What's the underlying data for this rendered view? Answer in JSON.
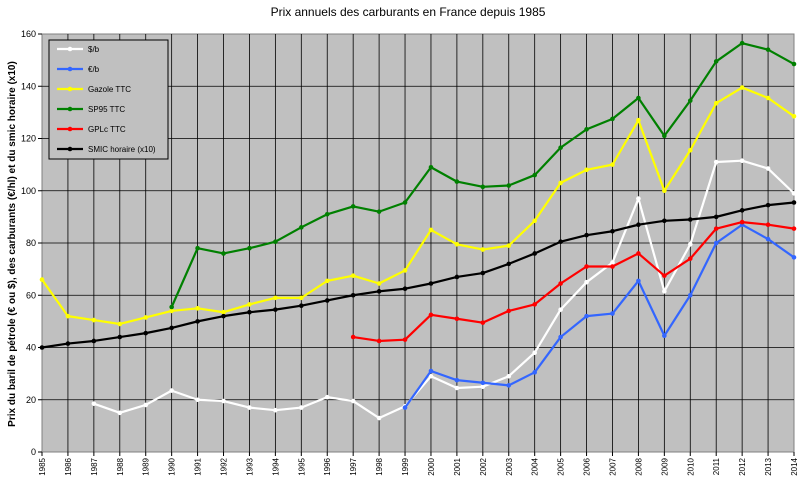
{
  "chart_data": {
    "type": "line",
    "title": "Prix annuels des carburants en France depuis 1985",
    "xlabel": "",
    "ylabel": "Prix du baril de pétrole (€ ou $), des carburants (€/hl) et du smic horaire (x10)",
    "ylim": [
      0,
      160
    ],
    "yticks": [
      0,
      20,
      40,
      60,
      80,
      100,
      120,
      140,
      160
    ],
    "x": [
      1985,
      1986,
      1987,
      1988,
      1989,
      1990,
      1991,
      1992,
      1993,
      1994,
      1995,
      1996,
      1997,
      1998,
      1999,
      2000,
      2001,
      2002,
      2003,
      2004,
      2005,
      2006,
      2007,
      2008,
      2009,
      2010,
      2011,
      2012,
      2013,
      2014
    ],
    "grid": true,
    "legend_position": "top-left",
    "series": [
      {
        "name": "$/b",
        "color": "#ffffff",
        "values": [
          null,
          null,
          18.5,
          15,
          18,
          23.5,
          20,
          19.5,
          17,
          16,
          17,
          21,
          19.5,
          13,
          17.5,
          29,
          24.5,
          25,
          29,
          38,
          54.5,
          65,
          72.5,
          97,
          61.5,
          79.5,
          111,
          111.5,
          108.5,
          99
        ]
      },
      {
        "name": "€/b",
        "color": "#3366ff",
        "values": [
          null,
          null,
          null,
          null,
          null,
          null,
          null,
          null,
          null,
          null,
          null,
          null,
          null,
          null,
          17,
          31,
          27.5,
          26.5,
          25.5,
          30.5,
          44,
          52,
          53,
          65.5,
          44.5,
          60,
          80,
          87,
          81.5,
          74.5
        ]
      },
      {
        "name": "Gazole TTC",
        "color": "#ffff00",
        "values": [
          66,
          52,
          50.5,
          49,
          51.5,
          54,
          55,
          53.5,
          56.5,
          59,
          59,
          65.5,
          67.5,
          64.5,
          69.5,
          85,
          79.5,
          77.5,
          79,
          88.5,
          103,
          108,
          110,
          127,
          100,
          115.5,
          133.5,
          139.5,
          135.5,
          128.5
        ]
      },
      {
        "name": "SP95 TTC",
        "color": "#008000",
        "values": [
          null,
          null,
          null,
          null,
          null,
          55.5,
          78,
          76,
          78,
          80.5,
          86,
          91,
          94,
          92,
          95.5,
          109,
          103.5,
          101.5,
          102,
          106,
          116.5,
          123.5,
          127.5,
          135.5,
          121,
          134.5,
          149.5,
          156.5,
          154,
          148.5
        ]
      },
      {
        "name": "GPLc TTC",
        "color": "#ff0000",
        "values": [
          null,
          null,
          null,
          null,
          null,
          null,
          null,
          null,
          null,
          null,
          null,
          null,
          44,
          42.5,
          43,
          52.5,
          51,
          49.5,
          54,
          56.5,
          64.5,
          71,
          71,
          76,
          67.5,
          74,
          85.5,
          88,
          87,
          85.5
        ]
      },
      {
        "name": "SMIC horaire (x10)",
        "color": "#000000",
        "values": [
          40,
          41.5,
          42.5,
          44,
          45.5,
          47.5,
          50,
          52,
          53.5,
          54.5,
          56,
          58,
          60,
          61.5,
          62.5,
          64.5,
          67,
          68.5,
          72,
          76,
          80.5,
          83,
          84.5,
          87,
          88.5,
          89,
          90,
          92.5,
          94.5,
          95.5
        ]
      }
    ]
  }
}
